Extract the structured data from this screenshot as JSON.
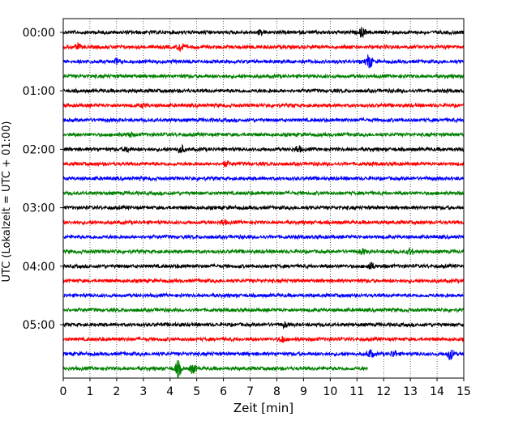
{
  "chart_data": {
    "type": "line",
    "title": "",
    "xlabel": "Zeit  [min]",
    "ylabel": "UTC (Lokalzeit = UTC + 01:00)",
    "xlim": [
      0,
      15
    ],
    "x_ticks": [
      0,
      1,
      2,
      3,
      4,
      5,
      6,
      7,
      8,
      9,
      10,
      11,
      12,
      13,
      14,
      15
    ],
    "x_tick_labels": [
      "0",
      "1",
      "2",
      "3",
      "4",
      "5",
      "6",
      "7",
      "8",
      "9",
      "10",
      "11",
      "12",
      "13",
      "14",
      "15"
    ],
    "y_tick_labels": [
      "00:00",
      "01:00",
      "02:00",
      "03:00",
      "04:00",
      "05:00"
    ],
    "y_tick_trace_index": [
      0,
      4,
      8,
      12,
      16,
      20
    ],
    "grid": "vertical dotted",
    "trace_interval_min": 15,
    "color_cycle": [
      "#000000",
      "#ff0000",
      "#0000ff",
      "#008000"
    ],
    "traces": [
      {
        "start": "00:00",
        "color": "#000000",
        "end_min": 15,
        "events": [
          [
            7.4,
            3
          ],
          [
            11.2,
            6
          ]
        ]
      },
      {
        "start": "00:15",
        "color": "#ff0000",
        "end_min": 15,
        "events": [
          [
            0.55,
            3
          ],
          [
            4.4,
            6
          ]
        ]
      },
      {
        "start": "00:30",
        "color": "#0000ff",
        "end_min": 15,
        "events": [
          [
            2.0,
            3
          ],
          [
            11.45,
            9
          ]
        ]
      },
      {
        "start": "00:45",
        "color": "#008000",
        "end_min": 15,
        "events": []
      },
      {
        "start": "01:00",
        "color": "#000000",
        "end_min": 15,
        "events": []
      },
      {
        "start": "01:15",
        "color": "#ff0000",
        "end_min": 15,
        "events": [
          [
            3.0,
            2
          ]
        ]
      },
      {
        "start": "01:30",
        "color": "#0000ff",
        "end_min": 15,
        "events": []
      },
      {
        "start": "01:45",
        "color": "#008000",
        "end_min": 15,
        "events": [
          [
            2.5,
            3
          ]
        ]
      },
      {
        "start": "02:00",
        "color": "#000000",
        "end_min": 15,
        "events": [
          [
            2.4,
            3
          ],
          [
            4.4,
            5
          ],
          [
            8.8,
            4
          ]
        ]
      },
      {
        "start": "02:15",
        "color": "#ff0000",
        "end_min": 15,
        "events": [
          [
            6.1,
            3
          ]
        ]
      },
      {
        "start": "02:30",
        "color": "#0000ff",
        "end_min": 15,
        "events": []
      },
      {
        "start": "02:45",
        "color": "#008000",
        "end_min": 15,
        "events": []
      },
      {
        "start": "03:00",
        "color": "#000000",
        "end_min": 15,
        "events": []
      },
      {
        "start": "03:15",
        "color": "#ff0000",
        "end_min": 15,
        "events": [
          [
            6.0,
            3
          ]
        ]
      },
      {
        "start": "03:30",
        "color": "#0000ff",
        "end_min": 15,
        "events": []
      },
      {
        "start": "03:45",
        "color": "#008000",
        "end_min": 15,
        "events": [
          [
            11.2,
            3
          ],
          [
            13.0,
            4
          ]
        ]
      },
      {
        "start": "04:00",
        "color": "#000000",
        "end_min": 15,
        "events": [
          [
            11.5,
            5
          ]
        ]
      },
      {
        "start": "04:15",
        "color": "#ff0000",
        "end_min": 15,
        "events": []
      },
      {
        "start": "04:30",
        "color": "#0000ff",
        "end_min": 15,
        "events": []
      },
      {
        "start": "04:45",
        "color": "#008000",
        "end_min": 15,
        "events": []
      },
      {
        "start": "05:00",
        "color": "#000000",
        "end_min": 15,
        "events": [
          [
            8.3,
            3
          ]
        ]
      },
      {
        "start": "05:15",
        "color": "#ff0000",
        "end_min": 15,
        "events": [
          [
            8.2,
            4
          ]
        ]
      },
      {
        "start": "05:30",
        "color": "#0000ff",
        "end_min": 15,
        "events": [
          [
            11.5,
            5
          ],
          [
            12.4,
            4
          ],
          [
            14.5,
            7
          ]
        ]
      },
      {
        "start": "05:45",
        "color": "#008000",
        "end_min": 11.4,
        "events": [
          [
            4.3,
            10
          ],
          [
            4.85,
            6
          ]
        ]
      }
    ]
  }
}
